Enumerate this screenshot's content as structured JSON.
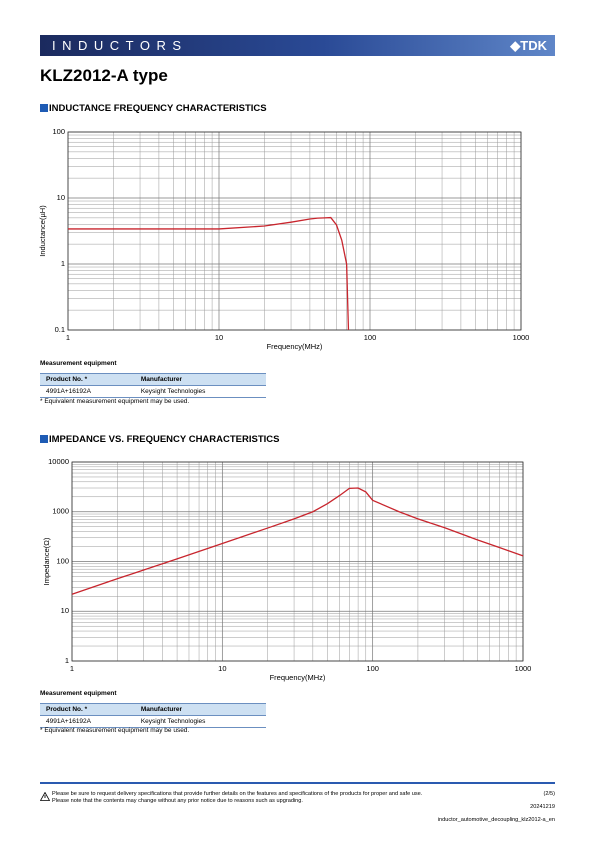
{
  "header": {
    "banner": "INDUCTORS",
    "logo": "TDK"
  },
  "title": "KLZ2012-A type",
  "chart_data": [
    {
      "type": "line",
      "title": "INDUCTANCE FREQUENCY CHARACTERISTICS",
      "x_label": "Frequency(MHz)",
      "y_label": "Inductance(µH)",
      "x": [
        1,
        5,
        10,
        20,
        30,
        40,
        45,
        50,
        55,
        60,
        65,
        70,
        72
      ],
      "values": [
        3.4,
        3.4,
        3.4,
        3.76,
        4.3,
        4.8,
        4.95,
        5.0,
        5.05,
        3.9,
        2.3,
        1.0,
        0.1
      ],
      "color": "#c8252d",
      "x_log": true,
      "y_log": true,
      "grid": true,
      "xlim": [
        1,
        1000
      ],
      "xticks": [
        1,
        10,
        100,
        1000
      ],
      "ylim": [
        0.1,
        100
      ],
      "yticks": [
        0.1,
        1,
        10,
        100
      ]
    },
    {
      "type": "line",
      "title": "IMPEDANCE VS. FREQUENCY CHARACTERISTICS",
      "x_label": "Frequency(MHz)",
      "y_label": "Impedance(Ω)",
      "x": [
        1,
        2,
        5,
        10,
        20,
        30,
        40,
        50,
        60,
        70,
        80,
        90,
        100,
        150,
        200,
        300,
        500,
        700,
        1000
      ],
      "values": [
        22,
        45,
        113,
        230,
        470,
        720,
        1000,
        1450,
        2100,
        2950,
        3000,
        2500,
        1700,
        1000,
        720,
        480,
        270,
        190,
        130
      ],
      "color": "#c8252d",
      "x_log": true,
      "y_log": true,
      "grid": true,
      "xlim": [
        1,
        1000
      ],
      "xticks": [
        1,
        10,
        100,
        1000
      ],
      "ylim": [
        1,
        10000
      ],
      "yticks": [
        1,
        10,
        100,
        1000,
        10000
      ]
    }
  ],
  "measurement": [
    {
      "caption": "Measurement equipment",
      "columns": [
        "Product No. *",
        "Manufacturer"
      ],
      "rows": [
        [
          "4991A+16192A",
          "Keysight Technologies"
        ]
      ],
      "note": "* Equivalent measurement equipment may be used."
    },
    {
      "caption": "Measurement equipment",
      "columns": [
        "Product No. *",
        "Manufacturer"
      ],
      "rows": [
        [
          "4991A+16192A",
          "Keysight Technologies"
        ]
      ],
      "note": "* Equivalent measurement equipment may be used."
    }
  ],
  "footer": {
    "notice": [
      "Please be sure to request delivery specifications that provide further details on the features and specifications of the products for proper and safe use.",
      "Please note that the contents may change without any prior notice due to reasons such as upgrading."
    ],
    "page": "(2/5)",
    "date": "20241219",
    "doc_id": "inductor_automotive_decoupling_klz2012-a_en"
  }
}
